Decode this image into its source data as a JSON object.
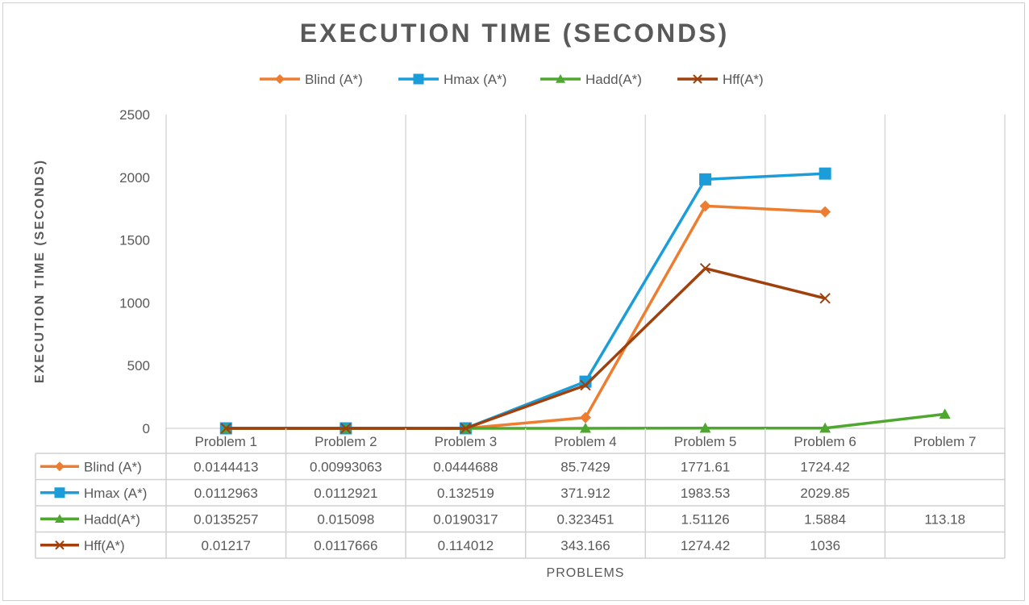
{
  "chart_data": {
    "type": "line",
    "title": "EXECUTION TIME (SECONDS)",
    "xlabel": "PROBLEMS",
    "ylabel": "EXECUTION TIME (SECONDS)",
    "categories": [
      "Problem 1",
      "Problem 2",
      "Problem 3",
      "Problem 4",
      "Problem 5",
      "Problem 6",
      "Problem 7"
    ],
    "ylim": [
      0,
      2500
    ],
    "yticks": [
      0,
      500,
      1000,
      1500,
      2000,
      2500
    ],
    "grid": "vertical",
    "legend_position": "top",
    "data_table": true,
    "series": [
      {
        "name": "Blind (A*)",
        "color": "#ED7D31",
        "marker": "diamond",
        "values": [
          0.0144413,
          0.00993063,
          0.0444688,
          85.7429,
          1771.61,
          1724.42,
          null
        ],
        "labels": [
          "0.0144413",
          "0.00993063",
          "0.0444688",
          "85.7429",
          "1771.61",
          "1724.42",
          ""
        ]
      },
      {
        "name": "Hmax (A*)",
        "color": "#1B9DD9",
        "marker": "square",
        "values": [
          0.0112963,
          0.0112921,
          0.132519,
          371.912,
          1983.53,
          2029.85,
          null
        ],
        "labels": [
          "0.0112963",
          "0.0112921",
          "0.132519",
          "371.912",
          "1983.53",
          "2029.85",
          ""
        ]
      },
      {
        "name": "Hadd(A*)",
        "color": "#4EA72E",
        "marker": "triangle",
        "values": [
          0.0135257,
          0.015098,
          0.0190317,
          0.323451,
          1.51126,
          1.5884,
          113.18
        ],
        "labels": [
          "0.0135257",
          "0.015098",
          "0.0190317",
          "0.323451",
          "1.51126",
          "1.5884",
          "113.18"
        ]
      },
      {
        "name": "Hff(A*)",
        "color": "#A0410D",
        "marker": "x",
        "values": [
          0.01217,
          0.0117666,
          0.114012,
          343.166,
          1274.42,
          1036,
          null
        ],
        "labels": [
          "0.01217",
          "0.0117666",
          "0.114012",
          "343.166",
          "1274.42",
          "1036",
          ""
        ]
      }
    ]
  }
}
